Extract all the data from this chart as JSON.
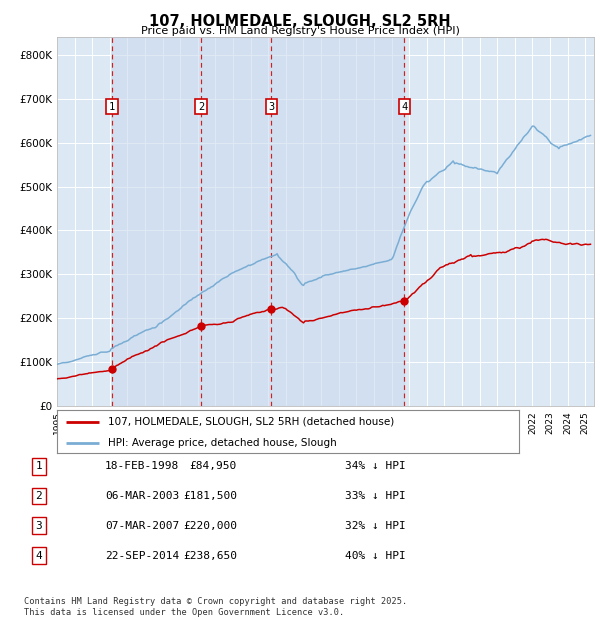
{
  "title": "107, HOLMEDALE, SLOUGH, SL2 5RH",
  "subtitle": "Price paid vs. HM Land Registry's House Price Index (HPI)",
  "xlim": [
    1995.0,
    2025.5
  ],
  "ylim": [
    0,
    840000
  ],
  "yticks": [
    0,
    100000,
    200000,
    300000,
    400000,
    500000,
    600000,
    700000,
    800000
  ],
  "ytick_labels": [
    "£0",
    "£100K",
    "£200K",
    "£300K",
    "£400K",
    "£500K",
    "£600K",
    "£700K",
    "£800K"
  ],
  "plot_bg_color": "#dce9f5",
  "grid_color": "#ffffff",
  "purchases": [
    {
      "num": 1,
      "date_label": "18-FEB-1998",
      "date_x": 1998.12,
      "price": 84950,
      "pct": "34%",
      "direction": "↓"
    },
    {
      "num": 2,
      "date_label": "06-MAR-2003",
      "date_x": 2003.18,
      "price": 181500,
      "pct": "33%",
      "direction": "↓"
    },
    {
      "num": 3,
      "date_label": "07-MAR-2007",
      "date_x": 2007.18,
      "price": 220000,
      "pct": "32%",
      "direction": "↓"
    },
    {
      "num": 4,
      "date_label": "22-SEP-2014",
      "date_x": 2014.73,
      "price": 238650,
      "pct": "40%",
      "direction": "↓"
    }
  ],
  "purchase_line_color": "#cc0000",
  "hpi_line_color": "#7aadd4",
  "legend_entries": [
    "107, HOLMEDALE, SLOUGH, SL2 5RH (detached house)",
    "HPI: Average price, detached house, Slough"
  ],
  "footer_text": "Contains HM Land Registry data © Crown copyright and database right 2025.\nThis data is licensed under the Open Government Licence v3.0.",
  "table_rows": [
    [
      "1",
      "18-FEB-1998",
      "£84,950",
      "34% ↓ HPI"
    ],
    [
      "2",
      "06-MAR-2003",
      "£181,500",
      "33% ↓ HPI"
    ],
    [
      "3",
      "07-MAR-2007",
      "£220,000",
      "32% ↓ HPI"
    ],
    [
      "4",
      "22-SEP-2014",
      "£238,650",
      "40% ↓ HPI"
    ]
  ]
}
